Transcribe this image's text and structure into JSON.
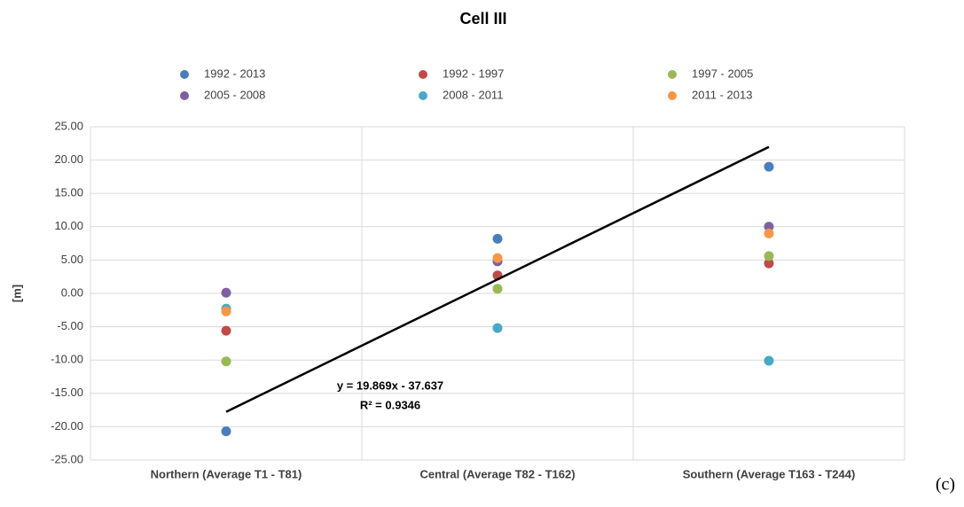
{
  "chart_data": {
    "type": "scatter",
    "title": "Cell III",
    "y_label": "[m]",
    "panel_label": "(c)",
    "categories": [
      "Northern (Average T1 - T81)",
      "Central (Average T82 - T162)",
      "Southern (Average T163 - T244)"
    ],
    "series": [
      {
        "name": "1992 - 2013",
        "color": "#4a7ebb",
        "values": [
          -20.7,
          8.2,
          19.0
        ]
      },
      {
        "name": "1992 - 1997",
        "color": "#be4b48",
        "values": [
          -5.6,
          2.7,
          4.5
        ]
      },
      {
        "name": "1997 - 2005",
        "color": "#98b954",
        "values": [
          -10.2,
          0.7,
          5.6
        ]
      },
      {
        "name": "2005 - 2008",
        "color": "#7d60a0",
        "values": [
          0.1,
          4.8,
          10.0
        ]
      },
      {
        "name": "2008 - 2011",
        "color": "#46aac5",
        "values": [
          -2.3,
          -5.2,
          -10.1
        ]
      },
      {
        "name": "2011 - 2013",
        "color": "#f79646",
        "values": [
          -2.7,
          5.3,
          9.0
        ]
      }
    ],
    "trendline": {
      "slope": 19.869,
      "intercept": -37.637,
      "equation": "y = 19.869x - 37.637",
      "r_squared": "R² = 0.9346",
      "color": "#000000"
    },
    "ylim": [
      -25,
      25
    ],
    "yticks": [
      {
        "value": -25,
        "label": "-25.00"
      },
      {
        "value": -20,
        "label": "-20.00"
      },
      {
        "value": -15,
        "label": "-15.00"
      },
      {
        "value": -10,
        "label": "-10.00"
      },
      {
        "value": -5,
        "label": "-5.00"
      },
      {
        "value": 0,
        "label": "0.00"
      },
      {
        "value": 5,
        "label": "5.00"
      },
      {
        "value": 10,
        "label": "10.00"
      },
      {
        "value": 15,
        "label": "15.00"
      },
      {
        "value": 20,
        "label": "20.00"
      },
      {
        "value": 25,
        "label": "25.00"
      }
    ],
    "grid": true
  }
}
